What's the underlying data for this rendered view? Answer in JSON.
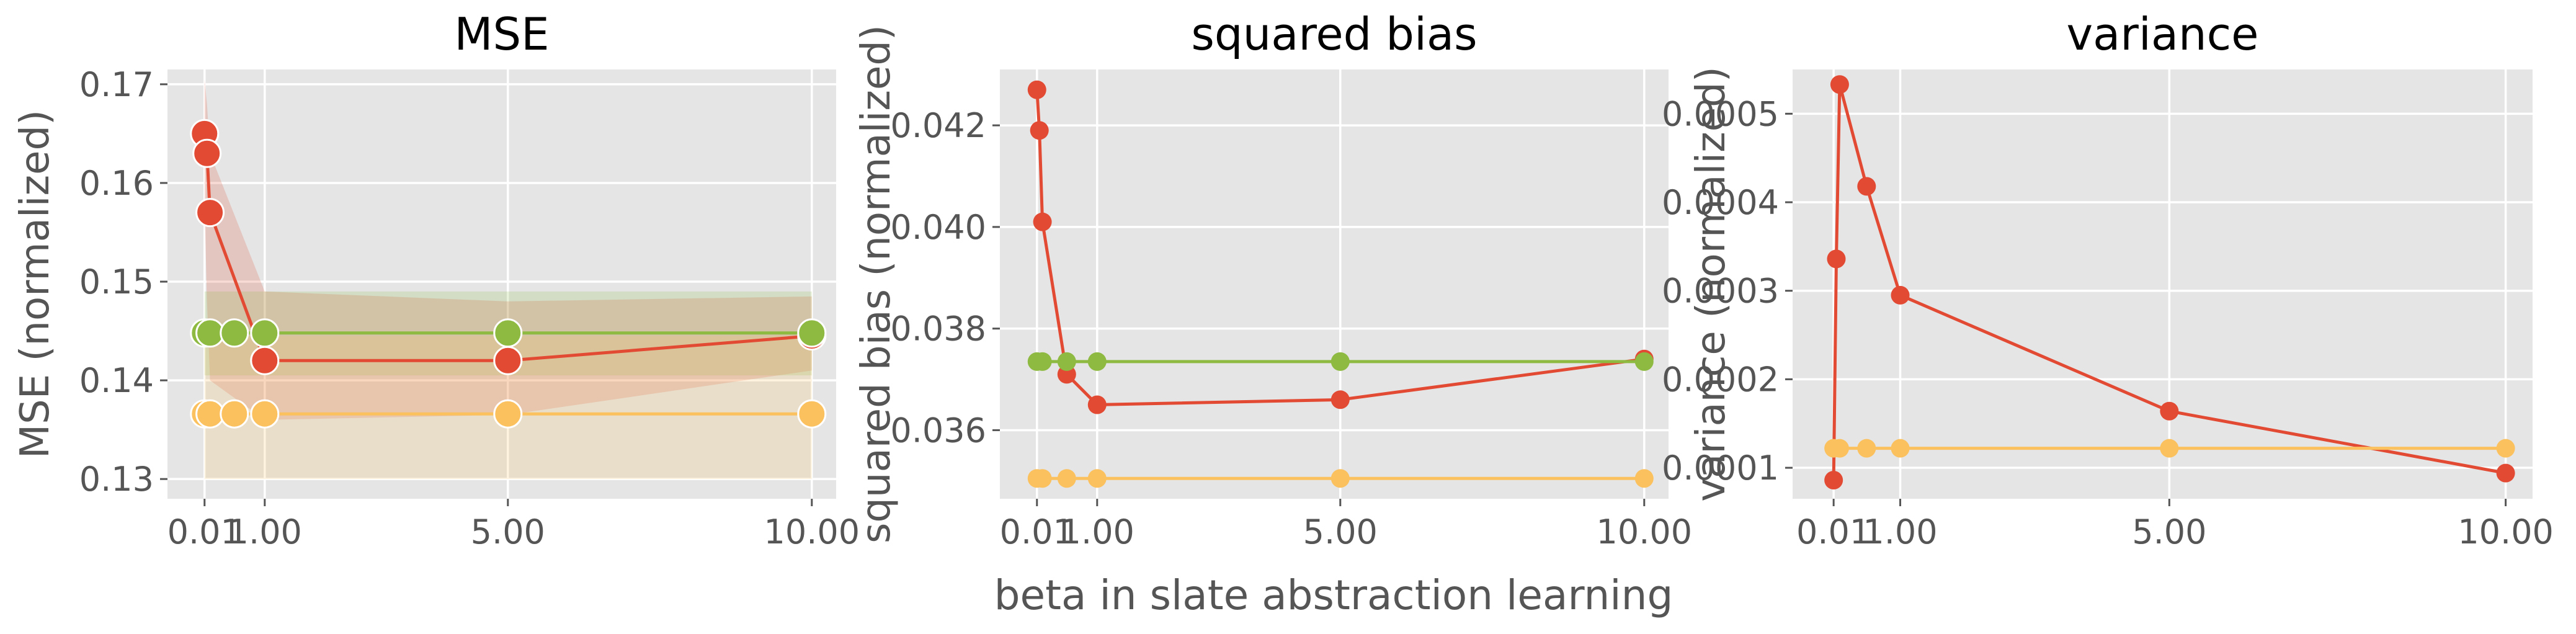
{
  "figure": {
    "shared_xlabel": "beta in slate abstraction learning"
  },
  "colors": {
    "red": "#E24A33",
    "green": "#8EBA42",
    "yellow": "#FBC15E",
    "panel_bg": "#E5E5E5",
    "grid": "#FFFFFF",
    "tick_text": "#555555",
    "title_text": "#000000"
  },
  "chart_data": [
    {
      "type": "line",
      "title": "MSE",
      "xlabel": "",
      "ylabel": "MSE (normalized)",
      "x": [
        0.01,
        0.1,
        0.5,
        1.0,
        5.0,
        10.0
      ],
      "xlim": [
        -0.6,
        10.4
      ],
      "ylim": [
        0.128,
        0.1715
      ],
      "xticks": [
        0.01,
        1.0,
        5.0,
        10.0
      ],
      "xtick_labels": [
        "0.01",
        "1.00",
        "5.00",
        "10.00"
      ],
      "yticks": [
        0.13,
        0.14,
        0.15,
        0.16,
        0.17
      ],
      "ytick_labels": [
        "0.13",
        "0.14",
        "0.15",
        "0.16",
        "0.17"
      ],
      "grid": true,
      "markers": "large",
      "series": [
        {
          "color": "#E24A33",
          "values": [
            0.165,
            0.163,
            0.157,
            0.142,
            0.142,
            0.1445
          ],
          "points_x": [
            0.01,
            0.05,
            0.1,
            1.0,
            5.0,
            10.0
          ],
          "band_low": [
            0.1575,
            0.148,
            0.14,
            0.136,
            0.1365,
            0.141
          ],
          "band_high": [
            0.1705,
            0.168,
            0.163,
            0.149,
            0.148,
            0.1485
          ]
        },
        {
          "color": "#8EBA42",
          "values": [
            0.1448,
            0.1448,
            0.1448,
            0.1448,
            0.1448,
            0.1448
          ],
          "points_x": [
            0.01,
            0.1,
            0.5,
            1.0,
            5.0,
            10.0
          ],
          "band_low": [
            0.1405,
            0.1405,
            0.1405,
            0.1405,
            0.1405,
            0.1405
          ],
          "band_high": [
            0.149,
            0.149,
            0.149,
            0.149,
            0.149,
            0.149
          ]
        },
        {
          "color": "#FBC15E",
          "values": [
            0.1366,
            0.1366,
            0.1366,
            0.1366,
            0.1366,
            0.1366
          ],
          "points_x": [
            0.01,
            0.1,
            0.5,
            1.0,
            5.0,
            10.0
          ],
          "band_low": [
            0.13,
            0.13,
            0.13,
            0.13,
            0.13,
            0.13
          ],
          "band_high": [
            0.1445,
            0.1445,
            0.1445,
            0.1445,
            0.1445,
            0.1445
          ]
        }
      ]
    },
    {
      "type": "line",
      "title": "squared bias",
      "xlabel": "",
      "ylabel": "squared bias (normalized)",
      "xlim": [
        -0.6,
        10.4
      ],
      "ylim": [
        0.03465,
        0.0431
      ],
      "xticks": [
        0.01,
        1.0,
        5.0,
        10.0
      ],
      "xtick_labels": [
        "0.01",
        "1.00",
        "5.00",
        "10.00"
      ],
      "yticks": [
        0.036,
        0.038,
        0.04,
        0.042
      ],
      "ytick_labels": [
        "0.036",
        "0.038",
        "0.040",
        "0.042"
      ],
      "grid": true,
      "markers": "small",
      "series": [
        {
          "color": "#E24A33",
          "points_x": [
            0.01,
            0.05,
            0.1,
            0.5,
            1.0,
            5.0,
            10.0
          ],
          "values": [
            0.0427,
            0.0419,
            0.0401,
            0.0371,
            0.0365,
            0.0366,
            0.0374
          ]
        },
        {
          "color": "#8EBA42",
          "points_x": [
            0.01,
            0.1,
            0.5,
            1.0,
            5.0,
            10.0
          ],
          "values": [
            0.03735,
            0.03735,
            0.03735,
            0.03735,
            0.03735,
            0.03735
          ]
        },
        {
          "color": "#FBC15E",
          "points_x": [
            0.01,
            0.1,
            0.5,
            1.0,
            5.0,
            10.0
          ],
          "values": [
            0.03505,
            0.03505,
            0.03505,
            0.03505,
            0.03505,
            0.03505
          ]
        }
      ]
    },
    {
      "type": "line",
      "title": "variance",
      "xlabel": "",
      "ylabel": "variance (normalized)",
      "xlim": [
        -0.6,
        10.4
      ],
      "ylim": [
        6.5e-05,
        0.00055
      ],
      "xticks": [
        0.01,
        1.0,
        5.0,
        10.0
      ],
      "xtick_labels": [
        "0.01",
        "1.00",
        "5.00",
        "10.00"
      ],
      "yticks": [
        0.0001,
        0.0002,
        0.0003,
        0.0004,
        0.0005
      ],
      "ytick_labels": [
        "0.0001",
        "0.0002",
        "0.0003",
        "0.0004",
        "0.0005"
      ],
      "grid": true,
      "markers": "small",
      "series": [
        {
          "color": "#E24A33",
          "points_x": [
            0.01,
            0.05,
            0.1,
            0.5,
            1.0,
            5.0,
            10.0
          ],
          "values": [
            8.6e-05,
            0.000336,
            0.000533,
            0.000418,
            0.000295,
            0.000164,
            9.4e-05
          ]
        },
        {
          "color": "#FBC15E",
          "points_x": [
            0.01,
            0.1,
            0.5,
            1.0,
            5.0,
            10.0
          ],
          "values": [
            0.000122,
            0.000122,
            0.000122,
            0.000122,
            0.000122,
            0.000122
          ]
        }
      ]
    }
  ]
}
